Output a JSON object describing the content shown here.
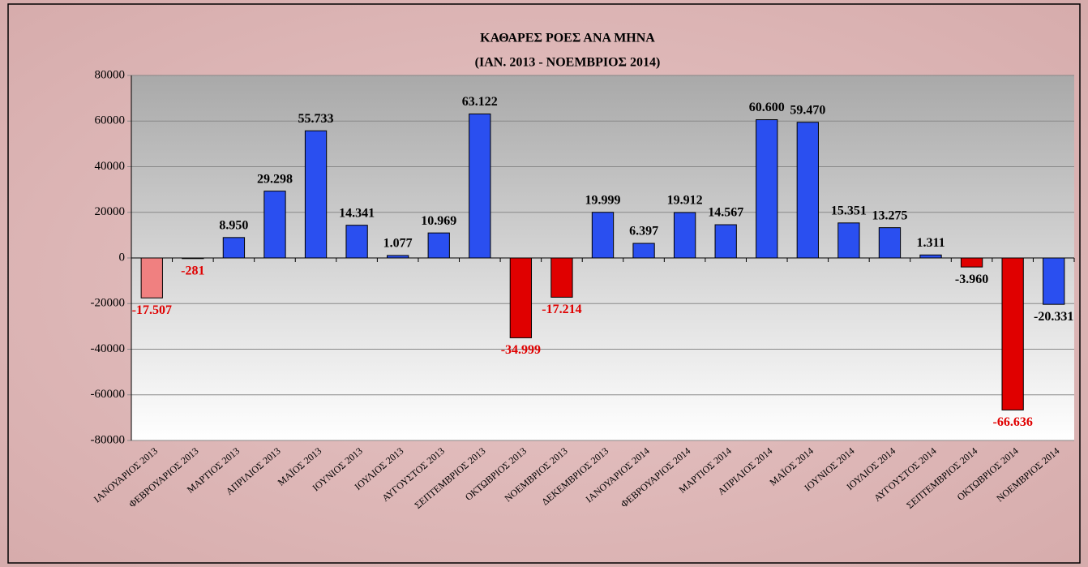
{
  "chart_data": {
    "type": "bar",
    "title": "ΚΑΘΑΡΕΣ ΡΟΕΣ ΑΝΑ ΜΗΝΑ",
    "subtitle": "(ΙΑΝ. 2013  - ΝΟΕΜΒΡΙΟΣ 2014)",
    "categories": [
      "ΙΑΝΟΥΑΡΙΟΣ 2013",
      "ΦΕΒΡΟΥΑΡΙΟΣ 2013",
      "ΜΑΡΤΙΟΣ 2013",
      "ΑΠΡΙΛΙΟΣ 2013",
      "ΜΑΪΟΣ 2013",
      "ΙΟΥΝΙΟΣ 2013",
      "ΙΟΥΛΙΟΣ 2013",
      "ΑΥΓΟΥΣΤΟΣ 2013",
      "ΣΕΠΤΕΜΒΡΙΟΣ 2013",
      "ΟΚΤΩΒΡΙΟΣ 2013",
      "ΝΟΕΜΒΡΙΟΣ 2013",
      "ΔΕΚΕΜΒΡΙΟΣ 2013",
      "ΙΑΝΟΥΑΡΙΟΣ 2014",
      "ΦΕΒΡΟΥΑΡΙΟΣ 2014",
      "ΜΑΡΤΙΟΣ 2014",
      "ΑΠΡΙΛΙΟΣ 2014",
      "ΜΑΪΟΣ 2014",
      "ΙΟΥΝΙΟΣ 2014",
      "ΙΟΥΛΙΟΣ 2014",
      "ΑΥΓΟΥΣΤΟΣ 2014",
      "ΣΕΠΤΕΜΒΡΙΟΣ 2014",
      "ΟΚΤΩΒΡΙΟΣ 2014",
      "ΝΟΕΜΒΡΙΟΣ 2014"
    ],
    "values": [
      -17507,
      -281,
      8950,
      29298,
      55733,
      14341,
      1077,
      10969,
      63122,
      -34999,
      -17214,
      19999,
      6397,
      19912,
      14567,
      60600,
      59470,
      15351,
      13275,
      1311,
      -3960,
      -66636,
      -20331
    ],
    "value_labels": [
      "-17.507",
      "-281",
      "8.950",
      "29.298",
      "55.733",
      "14.341",
      "1.077",
      "10.969",
      "63.122",
      "-34.999",
      "-17.214",
      "19.999",
      "6.397",
      "19.912",
      "14.567",
      "60.600",
      "59.470",
      "15.351",
      "13.275",
      "1.311",
      "-3.960",
      "-66.636",
      "-20.331"
    ],
    "colors": [
      "#f08080",
      "#e00000",
      "#2a4ff0",
      "#2a4ff0",
      "#2a4ff0",
      "#2a4ff0",
      "#2a4ff0",
      "#2a4ff0",
      "#2a4ff0",
      "#e00000",
      "#e00000",
      "#2a4ff0",
      "#2a4ff0",
      "#2a4ff0",
      "#2a4ff0",
      "#2a4ff0",
      "#2a4ff0",
      "#2a4ff0",
      "#2a4ff0",
      "#2a4ff0",
      "#e00000",
      "#e00000",
      "#2a4ff0"
    ],
    "label_colors": [
      "#e00000",
      "#e00000",
      "#000000",
      "#000000",
      "#000000",
      "#000000",
      "#000000",
      "#000000",
      "#000000",
      "#e00000",
      "#e00000",
      "#000000",
      "#000000",
      "#000000",
      "#000000",
      "#000000",
      "#000000",
      "#000000",
      "#000000",
      "#000000",
      "#000000",
      "#e00000",
      "#000000"
    ],
    "ylim": [
      -80000,
      80000
    ],
    "yticks": [
      -80000,
      -60000,
      -40000,
      -20000,
      0,
      20000,
      40000,
      60000,
      80000
    ],
    "grid": true
  }
}
